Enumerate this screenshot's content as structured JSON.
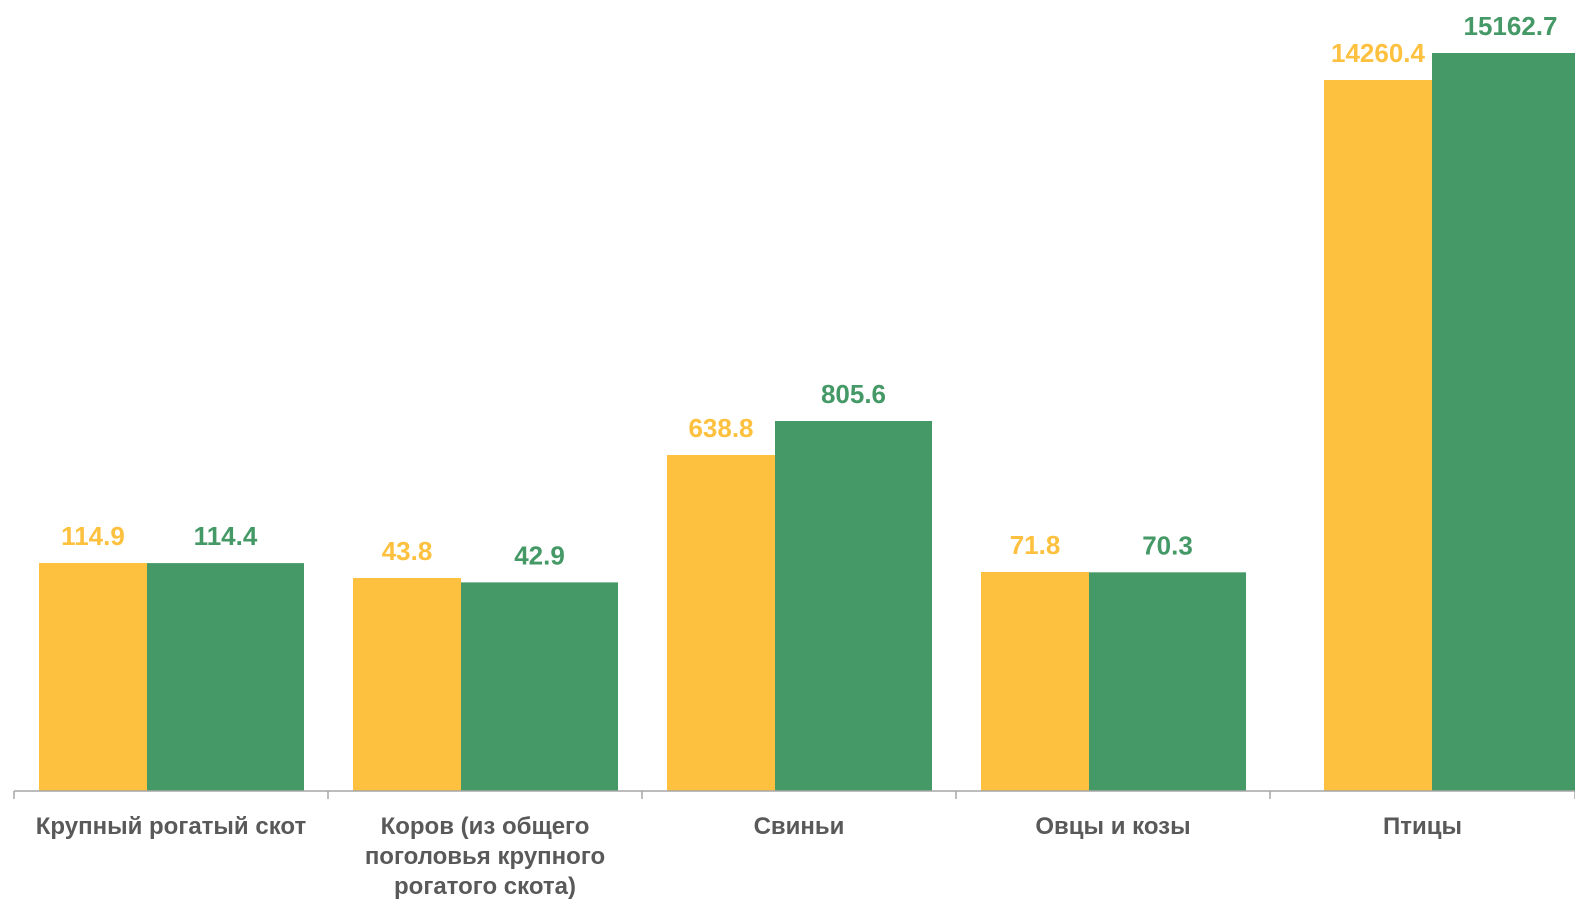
{
  "chart_data": {
    "type": "bar",
    "categories": [
      [
        "Крупный рогатый скот"
      ],
      [
        "Коров (из общего",
        "поголовья крупного",
        "рогатого скота)"
      ],
      [
        "Свиньи"
      ],
      [
        "Овцы и козы"
      ],
      [
        "Птицы"
      ]
    ],
    "series": [
      {
        "values": [
          114.9,
          43.8,
          638.8,
          71.8,
          14260.4
        ],
        "color": "#FDC13F"
      },
      {
        "values": [
          114.4,
          42.9,
          805.6,
          70.3,
          15162.7
        ],
        "color": "#449966"
      }
    ],
    "value_labels": [
      [
        "114.9",
        "43.8",
        "638.8",
        "71.8",
        "14260.4"
      ],
      [
        "114.4",
        "42.9",
        "805.6",
        "70.3",
        "15162.7"
      ]
    ],
    "scale": "broken (nonlinear)",
    "legend": "none",
    "grid": false,
    "axis_color": "#A6A6A6"
  }
}
